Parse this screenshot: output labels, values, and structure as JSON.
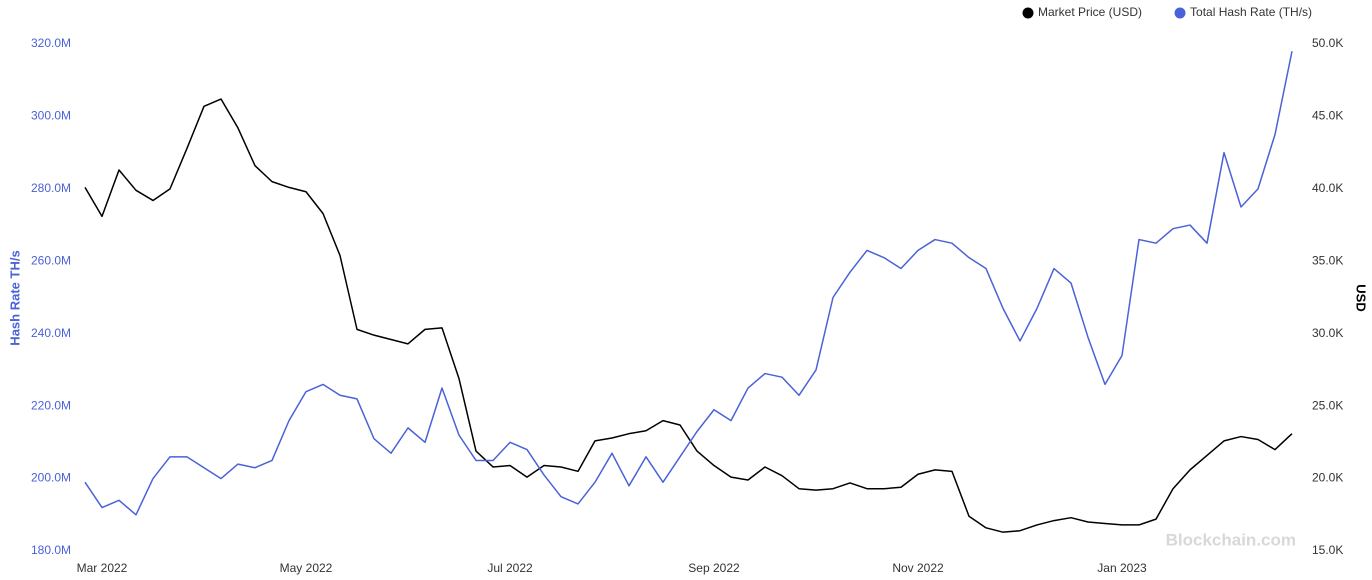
{
  "chart_data": {
    "type": "line",
    "categories": [
      null,
      "Mar 2022",
      null,
      null,
      null,
      null,
      null,
      null,
      null,
      null,
      null,
      null,
      null,
      "May 2022",
      null,
      null,
      null,
      null,
      null,
      null,
      null,
      null,
      null,
      null,
      null,
      "Jul 2022",
      null,
      null,
      null,
      null,
      null,
      null,
      null,
      null,
      null,
      null,
      null,
      "Sep 2022",
      null,
      null,
      null,
      null,
      null,
      null,
      null,
      null,
      null,
      null,
      null,
      "Nov 2022",
      null,
      null,
      null,
      null,
      null,
      null,
      null,
      null,
      null,
      null,
      null,
      "Jan 2023",
      null,
      null,
      null,
      null,
      null,
      null,
      null,
      null,
      null,
      null
    ],
    "series": [
      {
        "name": "Market Price (USD)",
        "color": "#000000",
        "axis": "y2",
        "values": [
          40100,
          38100,
          41300,
          39900,
          39200,
          40000,
          42800,
          45700,
          46200,
          44200,
          41600,
          40500,
          40100,
          39800,
          38300,
          35400,
          30300,
          29900,
          29600,
          29300,
          30300,
          30400,
          26900,
          21900,
          20800,
          20900,
          20100,
          20900,
          20800,
          20500,
          22600,
          22800,
          23100,
          23300,
          24000,
          23700,
          21900,
          20900,
          20100,
          19900,
          20800,
          20200,
          19300,
          19200,
          19300,
          19700,
          19300,
          19300,
          19400,
          20300,
          20600,
          20500,
          17400,
          16600,
          16300,
          16400,
          16800,
          17100,
          17300,
          17000,
          16900,
          16800,
          16800,
          17200,
          19300,
          20600,
          21600,
          22600,
          22900,
          22700,
          22000,
          23100
        ]
      },
      {
        "name": "Total Hash Rate (TH/s)",
        "color": "#4a62d8",
        "values": [
          199000000,
          192000000,
          194000000,
          190000000,
          200000000,
          206000000,
          206000000,
          203000000,
          200000000,
          204000000,
          203000000,
          205000000,
          216000000,
          224000000,
          226000000,
          223000000,
          222000000,
          211000000,
          207000000,
          214000000,
          210000000,
          225000000,
          212000000,
          205000000,
          205000000,
          210000000,
          208000000,
          201000000,
          195000000,
          193000000,
          199000000,
          207000000,
          198000000,
          206000000,
          199000000,
          206000000,
          213000000,
          219000000,
          216000000,
          225000000,
          229000000,
          228000000,
          223000000,
          230000000,
          250000000,
          257000000,
          263000000,
          261000000,
          258000000,
          263000000,
          266000000,
          265000000,
          261000000,
          258000000,
          247000000,
          238000000,
          247000000,
          258000000,
          254000000,
          239000000,
          226000000,
          234000000,
          266000000,
          265000000,
          269000000,
          270000000,
          265000000,
          290000000,
          275000000,
          280000000,
          295000000,
          318000000
        ]
      }
    ],
    "y_label": "Hash Rate TH/s",
    "y2_label": "USD",
    "ylim": [
      180000000,
      320000000
    ],
    "yticks": [
      {
        "value": 180000000,
        "label": "180.0M"
      },
      {
        "value": 200000000,
        "label": "200.0M"
      },
      {
        "value": 220000000,
        "label": "220.0M"
      },
      {
        "value": 240000000,
        "label": "240.0M"
      },
      {
        "value": 260000000,
        "label": "260.0M"
      },
      {
        "value": 280000000,
        "label": "280.0M"
      },
      {
        "value": 300000000,
        "label": "300.0M"
      },
      {
        "value": 320000000,
        "label": "320.0M"
      }
    ],
    "y2lim": [
      15000,
      50000
    ],
    "y2ticks": [
      {
        "value": 15000,
        "label": "15.0K"
      },
      {
        "value": 20000,
        "label": "20.0K"
      },
      {
        "value": 25000,
        "label": "25.0K"
      },
      {
        "value": 30000,
        "label": "30.0K"
      },
      {
        "value": 35000,
        "label": "35.0K"
      },
      {
        "value": 40000,
        "label": "40.0K"
      },
      {
        "value": 45000,
        "label": "45.0K"
      },
      {
        "value": 50000,
        "label": "50.0K"
      }
    ],
    "watermark": "Blockchain.com"
  }
}
